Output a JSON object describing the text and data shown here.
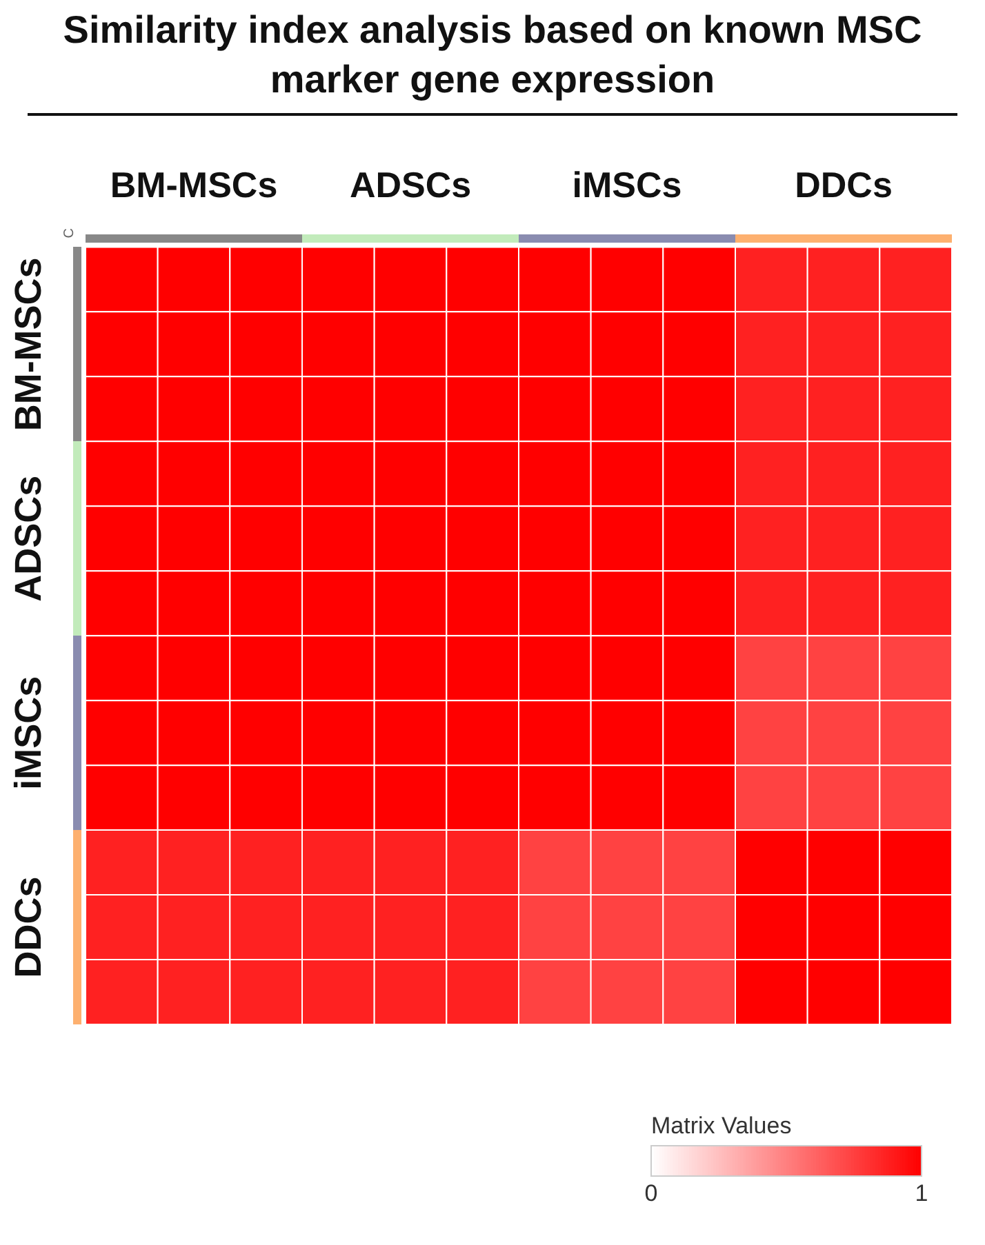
{
  "chart_data": {
    "type": "heatmap",
    "title": "Similarity index analysis based on known MSC marker gene expression",
    "categories": [
      null,
      "BM-MSCs",
      null,
      null,
      "ADSCs",
      null,
      null,
      "iMSCs",
      null,
      null,
      "DDCs",
      null
    ],
    "y_categories": [
      null,
      "BM-MSCs",
      null,
      null,
      "ADSCs",
      null,
      null,
      "iMSCs",
      null,
      null,
      "DDCs",
      null
    ],
    "cells": [
      [
        1,
        1,
        1,
        1,
        1,
        1,
        1,
        1,
        1,
        0.87,
        0.87,
        0.87
      ],
      [
        1,
        1,
        1,
        1,
        1,
        1,
        1,
        1,
        1,
        0.87,
        0.87,
        0.87
      ],
      [
        1,
        1,
        1,
        1,
        1,
        1,
        1,
        1,
        1,
        0.87,
        0.87,
        0.87
      ],
      [
        1,
        1,
        1,
        1,
        1,
        1,
        1,
        1,
        1,
        0.87,
        0.87,
        0.87
      ],
      [
        1,
        1,
        1,
        1,
        1,
        1,
        1,
        1,
        1,
        0.87,
        0.87,
        0.87
      ],
      [
        1,
        1,
        1,
        1,
        1,
        1,
        1,
        1,
        1,
        0.87,
        0.87,
        0.87
      ],
      [
        1,
        1,
        1,
        1,
        1,
        1,
        1,
        1,
        1,
        0.74,
        0.74,
        0.74
      ],
      [
        1,
        1,
        1,
        1,
        1,
        1,
        1,
        1,
        1,
        0.74,
        0.74,
        0.74
      ],
      [
        1,
        1,
        1,
        1,
        1,
        1,
        1,
        1,
        1,
        0.74,
        0.74,
        0.74
      ],
      [
        0.87,
        0.87,
        0.87,
        0.87,
        0.87,
        0.87,
        0.74,
        0.74,
        0.74,
        1,
        1,
        1
      ],
      [
        0.87,
        0.87,
        0.87,
        0.87,
        0.87,
        0.87,
        0.74,
        0.74,
        0.74,
        1,
        1,
        1
      ],
      [
        0.87,
        0.87,
        0.87,
        0.87,
        0.87,
        0.87,
        0.74,
        0.74,
        0.74,
        1,
        1,
        1
      ]
    ],
    "clabel": "Matrix Values",
    "clim": [
      0,
      1
    ],
    "cticks": [
      0,
      1
    ],
    "annotations": [
      "C"
    ]
  }
}
